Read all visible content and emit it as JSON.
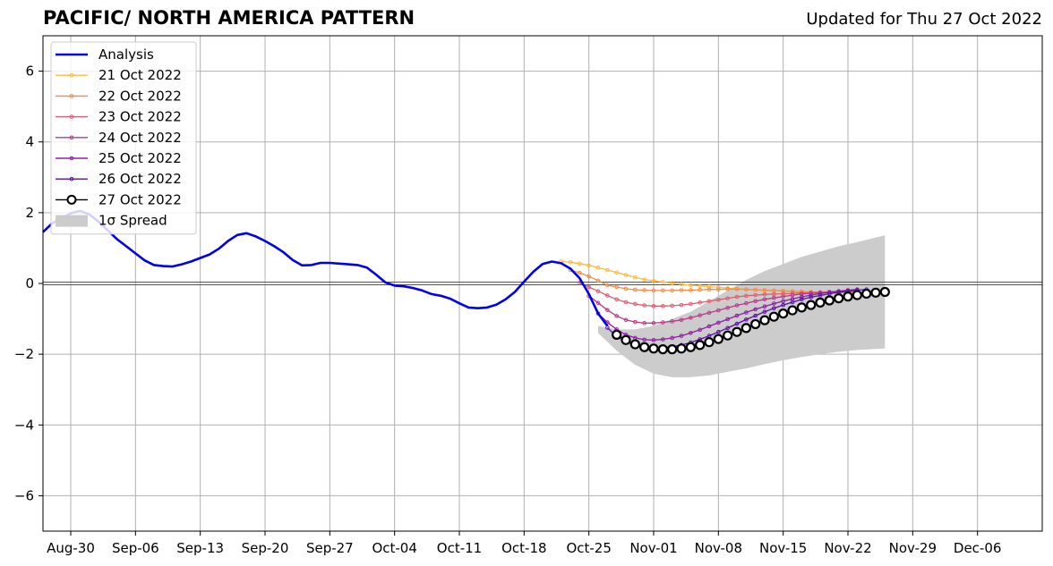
{
  "header": {
    "title": "PACIFIC/ NORTH AMERICA PATTERN",
    "updated": "Updated for Thu 27 Oct 2022"
  },
  "chart_data": {
    "type": "line",
    "xlim": [
      "2022-08-27",
      "2022-12-13"
    ],
    "ylim": [
      -7,
      7
    ],
    "xticks": [
      {
        "date": "2022-08-30",
        "label": "Aug-30"
      },
      {
        "date": "2022-09-06",
        "label": "Sep-06"
      },
      {
        "date": "2022-09-13",
        "label": "Sep-13"
      },
      {
        "date": "2022-09-20",
        "label": "Sep-20"
      },
      {
        "date": "2022-09-27",
        "label": "Sep-27"
      },
      {
        "date": "2022-10-04",
        "label": "Oct-04"
      },
      {
        "date": "2022-10-11",
        "label": "Oct-11"
      },
      {
        "date": "2022-10-18",
        "label": "Oct-18"
      },
      {
        "date": "2022-10-25",
        "label": "Oct-25"
      },
      {
        "date": "2022-11-01",
        "label": "Nov-01"
      },
      {
        "date": "2022-11-08",
        "label": "Nov-08"
      },
      {
        "date": "2022-11-15",
        "label": "Nov-15"
      },
      {
        "date": "2022-11-22",
        "label": "Nov-22"
      },
      {
        "date": "2022-11-29",
        "label": "Nov-29"
      },
      {
        "date": "2022-12-06",
        "label": "Dec-06"
      }
    ],
    "yticks": [
      {
        "value": -6,
        "label": "−6"
      },
      {
        "value": -4,
        "label": "−4"
      },
      {
        "value": -2,
        "label": "−2"
      },
      {
        "value": 0,
        "label": "0"
      },
      {
        "value": 2,
        "label": "2"
      },
      {
        "value": 4,
        "label": "4"
      },
      {
        "value": 6,
        "label": "6"
      }
    ],
    "grid": true,
    "legend_position": "top-left",
    "spread": {
      "name": "1σ Spread",
      "color": "#cccccc",
      "dates": [
        "2022-10-26",
        "2022-10-28",
        "2022-10-30",
        "2022-11-01",
        "2022-11-03",
        "2022-11-05",
        "2022-11-07",
        "2022-11-09",
        "2022-11-11",
        "2022-11-13",
        "2022-11-15",
        "2022-11-17",
        "2022-11-19",
        "2022-11-21",
        "2022-11-23",
        "2022-11-25",
        "2022-11-26"
      ],
      "upper": [
        -1.2,
        -1.3,
        -1.3,
        -1.2,
        -1.0,
        -0.8,
        -0.5,
        -0.2,
        0.1,
        0.35,
        0.55,
        0.75,
        0.9,
        1.05,
        1.17,
        1.3,
        1.36
      ],
      "lower": [
        -1.4,
        -1.9,
        -2.3,
        -2.55,
        -2.65,
        -2.65,
        -2.6,
        -2.5,
        -2.4,
        -2.28,
        -2.17,
        -2.08,
        -2.0,
        -1.93,
        -1.88,
        -1.85,
        -1.84
      ]
    },
    "analysis": {
      "name": "Analysis",
      "color": "#0000ee",
      "dates": [
        "2022-08-27",
        "2022-08-28",
        "2022-08-29",
        "2022-08-30",
        "2022-08-31",
        "2022-09-01",
        "2022-09-02",
        "2022-09-03",
        "2022-09-04",
        "2022-09-05",
        "2022-09-06",
        "2022-09-07",
        "2022-09-08",
        "2022-09-09",
        "2022-09-10",
        "2022-09-11",
        "2022-09-12",
        "2022-09-13",
        "2022-09-14",
        "2022-09-15",
        "2022-09-16",
        "2022-09-17",
        "2022-09-18",
        "2022-09-19",
        "2022-09-20",
        "2022-09-21",
        "2022-09-22",
        "2022-09-23",
        "2022-09-24",
        "2022-09-25",
        "2022-09-26",
        "2022-09-27",
        "2022-09-28",
        "2022-09-29",
        "2022-09-30",
        "2022-10-01",
        "2022-10-02",
        "2022-10-03",
        "2022-10-04",
        "2022-10-05",
        "2022-10-06",
        "2022-10-07",
        "2022-10-08",
        "2022-10-09",
        "2022-10-10",
        "2022-10-11",
        "2022-10-12",
        "2022-10-13",
        "2022-10-14",
        "2022-10-15",
        "2022-10-16",
        "2022-10-17",
        "2022-10-18",
        "2022-10-19",
        "2022-10-20",
        "2022-10-21",
        "2022-10-22",
        "2022-10-23",
        "2022-10-24",
        "2022-10-25",
        "2022-10-26",
        "2022-10-27"
      ],
      "values": [
        1.45,
        1.7,
        1.85,
        1.98,
        2.05,
        1.95,
        1.75,
        1.5,
        1.25,
        1.05,
        0.85,
        0.65,
        0.52,
        0.49,
        0.48,
        0.54,
        0.62,
        0.72,
        0.82,
        0.98,
        1.2,
        1.37,
        1.42,
        1.33,
        1.2,
        1.05,
        0.88,
        0.66,
        0.51,
        0.52,
        0.58,
        0.58,
        0.56,
        0.54,
        0.52,
        0.45,
        0.25,
        0.03,
        -0.06,
        -0.08,
        -0.13,
        -0.2,
        -0.3,
        -0.35,
        -0.43,
        -0.56,
        -0.68,
        -0.7,
        -0.68,
        -0.6,
        -0.45,
        -0.24,
        0.05,
        0.33,
        0.55,
        0.62,
        0.57,
        0.42,
        0.15,
        -0.3,
        -0.85,
        -1.2
      ]
    },
    "forecasts": [
      {
        "name": "21 Oct 2022",
        "color": "#fcba3f",
        "start": "2022-10-22",
        "end": "2022-11-23",
        "values": [
          0.62,
          0.6,
          0.56,
          0.51,
          0.45,
          0.38,
          0.31,
          0.24,
          0.17,
          0.11,
          0.07,
          0.04,
          0.01,
          -0.02,
          -0.05,
          -0.07,
          -0.09,
          -0.11,
          -0.13,
          -0.15,
          -0.17,
          -0.18,
          -0.2,
          -0.21,
          -0.22,
          -0.23,
          -0.24,
          -0.25,
          -0.25,
          -0.26,
          -0.26,
          -0.27,
          -0.27
        ]
      },
      {
        "name": "22 Oct 2022",
        "color": "#f28c4b",
        "start": "2022-10-23",
        "end": "2022-11-23",
        "values": [
          0.38,
          0.3,
          0.2,
          0.08,
          -0.05,
          -0.1,
          -0.15,
          -0.18,
          -0.19,
          -0.2,
          -0.2,
          -0.2,
          -0.19,
          -0.19,
          -0.18,
          -0.17,
          -0.17,
          -0.16,
          -0.16,
          -0.17,
          -0.18,
          -0.19,
          -0.2,
          -0.21,
          -0.22,
          -0.23,
          -0.24,
          -0.25,
          -0.25,
          -0.26,
          -0.26,
          -0.26
        ]
      },
      {
        "name": "23 Oct 2022",
        "color": "#dd5d6f",
        "start": "2022-10-24",
        "end": "2022-11-23",
        "values": [
          0.02,
          -0.1,
          -0.22,
          -0.34,
          -0.45,
          -0.53,
          -0.58,
          -0.62,
          -0.64,
          -0.64,
          -0.63,
          -0.61,
          -0.58,
          -0.54,
          -0.5,
          -0.46,
          -0.42,
          -0.38,
          -0.35,
          -0.33,
          -0.31,
          -0.3,
          -0.29,
          -0.28,
          -0.27,
          -0.26,
          -0.25,
          -0.24,
          -0.23,
          -0.23,
          -0.22
        ]
      },
      {
        "name": "24 Oct 2022",
        "color": "#b83b8a",
        "start": "2022-10-25",
        "end": "2022-11-23",
        "values": [
          -0.35,
          -0.55,
          -0.75,
          -0.92,
          -1.03,
          -1.09,
          -1.12,
          -1.12,
          -1.1,
          -1.07,
          -1.03,
          -0.97,
          -0.9,
          -0.83,
          -0.76,
          -0.69,
          -0.62,
          -0.56,
          -0.5,
          -0.45,
          -0.41,
          -0.37,
          -0.33,
          -0.3,
          -0.28,
          -0.26,
          -0.24,
          -0.22,
          -0.21,
          -0.2
        ]
      },
      {
        "name": "25 Oct 2022",
        "color": "#8e1ea5",
        "start": "2022-10-26",
        "end": "2022-11-23",
        "values": [
          -0.85,
          -1.1,
          -1.3,
          -1.45,
          -1.54,
          -1.59,
          -1.6,
          -1.58,
          -1.54,
          -1.48,
          -1.4,
          -1.31,
          -1.21,
          -1.11,
          -1.01,
          -0.91,
          -0.82,
          -0.73,
          -0.65,
          -0.57,
          -0.5,
          -0.44,
          -0.38,
          -0.33,
          -0.29,
          -0.25,
          -0.22,
          -0.19,
          -0.17
        ]
      },
      {
        "name": "26 Oct 2022",
        "color": "#5a10a0",
        "start": "2022-10-27",
        "end": "2022-11-24",
        "values": [
          -1.25,
          -1.5,
          -1.65,
          -1.75,
          -1.8,
          -1.82,
          -1.82,
          -1.79,
          -1.74,
          -1.67,
          -1.58,
          -1.48,
          -1.37,
          -1.26,
          -1.14,
          -1.02,
          -0.91,
          -0.8,
          -0.7,
          -0.61,
          -0.53,
          -0.45,
          -0.39,
          -0.34,
          -0.29,
          -0.25,
          -0.22,
          -0.19,
          -0.17
        ]
      },
      {
        "name": "27 Oct 2022",
        "color": "#000000",
        "start": "2022-10-28",
        "end": "2022-11-26",
        "marker": "open-circle",
        "values": [
          -1.45,
          -1.6,
          -1.72,
          -1.8,
          -1.84,
          -1.86,
          -1.86,
          -1.84,
          -1.8,
          -1.74,
          -1.66,
          -1.57,
          -1.47,
          -1.37,
          -1.26,
          -1.15,
          -1.04,
          -0.94,
          -0.85,
          -0.76,
          -0.68,
          -0.61,
          -0.54,
          -0.48,
          -0.42,
          -0.37,
          -0.33,
          -0.29,
          -0.26,
          -0.24
        ]
      }
    ]
  }
}
